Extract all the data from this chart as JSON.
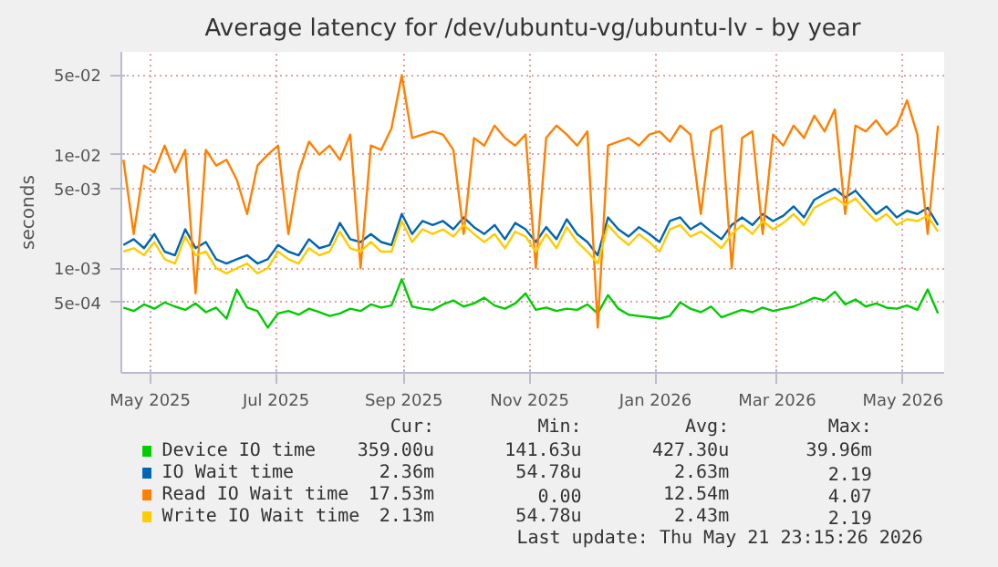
{
  "chart_data": {
    "type": "line",
    "title": "Average latency for /dev/ubuntu-vg/ubuntu-lv - by year",
    "ylabel": "seconds",
    "log": "y",
    "grid": true,
    "legend": "bottom",
    "xlim": [
      "2025-04-17",
      "2026-05-21"
    ],
    "xticks": [
      {
        "value": "2025-05-01",
        "label": "May 2025"
      },
      {
        "value": "2025-07-01",
        "label": "Jul 2025"
      },
      {
        "value": "2025-09-01",
        "label": "Sep 2025"
      },
      {
        "value": "2025-11-01",
        "label": "Nov 2025"
      },
      {
        "value": "2026-01-01",
        "label": "Jan 2026"
      },
      {
        "value": "2026-03-01",
        "label": "Mar 2026"
      },
      {
        "value": "2026-05-01",
        "label": "May 2026"
      }
    ],
    "ylim": [
      0.00012,
      0.08
    ],
    "yticks": [
      {
        "value": 0.05,
        "label": "5e-02"
      },
      {
        "value": 0.01,
        "label": "1e-02"
      },
      {
        "value": 0.005,
        "label": "5e-03"
      },
      {
        "value": 0.001,
        "label": "1e-03"
      },
      {
        "value": 0.0005,
        "label": "5e-04"
      }
    ],
    "x": [
      "2025-04-18",
      "2025-04-23",
      "2025-04-28",
      "2025-05-03",
      "2025-05-08",
      "2025-05-13",
      "2025-05-18",
      "2025-05-23",
      "2025-05-28",
      "2025-06-02",
      "2025-06-07",
      "2025-06-12",
      "2025-06-17",
      "2025-06-22",
      "2025-06-27",
      "2025-07-02",
      "2025-07-07",
      "2025-07-12",
      "2025-07-17",
      "2025-07-22",
      "2025-07-27",
      "2025-08-01",
      "2025-08-06",
      "2025-08-11",
      "2025-08-16",
      "2025-08-21",
      "2025-08-26",
      "2025-08-31",
      "2025-09-05",
      "2025-09-10",
      "2025-09-15",
      "2025-09-20",
      "2025-09-25",
      "2025-09-30",
      "2025-10-05",
      "2025-10-10",
      "2025-10-15",
      "2025-10-20",
      "2025-10-25",
      "2025-10-30",
      "2025-11-04",
      "2025-11-09",
      "2025-11-14",
      "2025-11-19",
      "2025-11-24",
      "2025-11-29",
      "2025-12-04",
      "2025-12-09",
      "2025-12-14",
      "2025-12-19",
      "2025-12-24",
      "2025-12-29",
      "2026-01-03",
      "2026-01-08",
      "2026-01-13",
      "2026-01-18",
      "2026-01-23",
      "2026-01-28",
      "2026-02-02",
      "2026-02-07",
      "2026-02-12",
      "2026-02-17",
      "2026-02-22",
      "2026-02-27",
      "2026-03-04",
      "2026-03-09",
      "2026-03-14",
      "2026-03-19",
      "2026-03-24",
      "2026-03-29",
      "2026-04-03",
      "2026-04-08",
      "2026-04-13",
      "2026-04-18",
      "2026-04-23",
      "2026-04-28",
      "2026-05-03",
      "2026-05-08",
      "2026-05-13",
      "2026-05-18"
    ],
    "series": [
      {
        "name": "Device IO time",
        "color": "#00cc00",
        "values": [
          0.00045,
          0.00042,
          0.00048,
          0.00044,
          0.0005,
          0.00046,
          0.00043,
          0.00049,
          0.00041,
          0.00045,
          0.00036,
          0.00065,
          0.00045,
          0.00042,
          0.0003,
          0.0004,
          0.00042,
          0.00039,
          0.00044,
          0.00041,
          0.00038,
          0.0004,
          0.00044,
          0.00042,
          0.00048,
          0.00045,
          0.00047,
          0.0008,
          0.00046,
          0.00044,
          0.00043,
          0.00048,
          0.00052,
          0.00046,
          0.00049,
          0.00055,
          0.00047,
          0.00044,
          0.00049,
          0.0006,
          0.00043,
          0.00045,
          0.00042,
          0.00044,
          0.00043,
          0.00048,
          0.0004,
          0.00058,
          0.00044,
          0.00039,
          0.00038,
          0.00037,
          0.00036,
          0.00038,
          0.0005,
          0.00044,
          0.00041,
          0.00046,
          0.00037,
          0.0004,
          0.00043,
          0.00041,
          0.00045,
          0.00042,
          0.00044,
          0.00046,
          0.0005,
          0.00055,
          0.00052,
          0.00062,
          0.00048,
          0.00053,
          0.00046,
          0.00049,
          0.00045,
          0.00044,
          0.00047,
          0.00043,
          0.00065,
          0.0004
        ]
      },
      {
        "name": "IO Wait time",
        "color": "#0066b3",
        "values": [
          0.0016,
          0.0018,
          0.0015,
          0.002,
          0.0014,
          0.0013,
          0.0022,
          0.0015,
          0.0017,
          0.0012,
          0.0011,
          0.0012,
          0.0013,
          0.0011,
          0.0012,
          0.0016,
          0.0014,
          0.0013,
          0.0018,
          0.0015,
          0.0016,
          0.0025,
          0.0018,
          0.0017,
          0.002,
          0.0017,
          0.0016,
          0.003,
          0.002,
          0.0026,
          0.0024,
          0.0026,
          0.0022,
          0.0028,
          0.0023,
          0.002,
          0.0024,
          0.0018,
          0.0025,
          0.0022,
          0.0017,
          0.0023,
          0.0018,
          0.0027,
          0.002,
          0.0017,
          0.0013,
          0.0028,
          0.0022,
          0.0019,
          0.0023,
          0.002,
          0.0017,
          0.0026,
          0.0028,
          0.0022,
          0.0025,
          0.0021,
          0.0018,
          0.0024,
          0.0028,
          0.0024,
          0.003,
          0.0026,
          0.0029,
          0.0035,
          0.0028,
          0.004,
          0.0045,
          0.005,
          0.0042,
          0.0048,
          0.0038,
          0.003,
          0.0035,
          0.0028,
          0.0032,
          0.003,
          0.0034,
          0.0024
        ]
      },
      {
        "name": "Read IO Wait time",
        "color": "#ff8000",
        "values": [
          0.009,
          0.002,
          0.008,
          0.007,
          0.012,
          0.007,
          0.011,
          0.0006,
          0.011,
          0.008,
          0.009,
          0.006,
          0.003,
          0.008,
          0.01,
          0.012,
          0.002,
          0.007,
          0.013,
          0.01,
          0.012,
          0.009,
          0.015,
          0.001,
          0.012,
          0.011,
          0.017,
          0.05,
          0.014,
          0.015,
          0.016,
          0.015,
          0.011,
          0.002,
          0.014,
          0.012,
          0.018,
          0.014,
          0.012,
          0.015,
          0.001,
          0.014,
          0.018,
          0.015,
          0.012,
          0.016,
          0.0003,
          0.012,
          0.013,
          0.014,
          0.012,
          0.015,
          0.016,
          0.013,
          0.018,
          0.015,
          0.003,
          0.016,
          0.018,
          0.001,
          0.014,
          0.016,
          0.002,
          0.015,
          0.012,
          0.018,
          0.014,
          0.022,
          0.016,
          0.025,
          0.003,
          0.018,
          0.016,
          0.02,
          0.015,
          0.018,
          0.03,
          0.015,
          0.002,
          0.018
        ]
      },
      {
        "name": "Write IO Wait time",
        "color": "#ffcc00",
        "values": [
          0.0014,
          0.0015,
          0.0013,
          0.0017,
          0.0012,
          0.0011,
          0.0019,
          0.0013,
          0.0014,
          0.001,
          0.0009,
          0.001,
          0.0011,
          0.0009,
          0.001,
          0.0014,
          0.0012,
          0.0011,
          0.0015,
          0.0013,
          0.0014,
          0.0021,
          0.0015,
          0.0014,
          0.0017,
          0.0014,
          0.0014,
          0.0026,
          0.0017,
          0.0022,
          0.002,
          0.0022,
          0.0019,
          0.0024,
          0.002,
          0.0017,
          0.002,
          0.0015,
          0.0021,
          0.0019,
          0.0014,
          0.002,
          0.0015,
          0.0023,
          0.0017,
          0.0014,
          0.0011,
          0.0024,
          0.0019,
          0.0016,
          0.002,
          0.0017,
          0.0014,
          0.0022,
          0.0024,
          0.0019,
          0.0021,
          0.0018,
          0.0015,
          0.002,
          0.0024,
          0.002,
          0.0026,
          0.0022,
          0.0025,
          0.003,
          0.0024,
          0.0034,
          0.0038,
          0.0042,
          0.0036,
          0.0041,
          0.0032,
          0.0026,
          0.003,
          0.0024,
          0.0027,
          0.0026,
          0.0029,
          0.0021
        ]
      }
    ],
    "annotations": [
      "Cur:",
      "Min:",
      "Avg:",
      "Max:",
      "359.00u",
      "141.63u",
      "427.30u",
      "39.96m",
      "2.36m",
      "54.78u",
      "2.63m",
      "2.19",
      "17.53m",
      "0.00",
      "12.54m",
      "4.07",
      "2.13m",
      "54.78u",
      "2.43m",
      "2.19",
      "Last update: Thu May 21 23:15:26 2026"
    ]
  }
}
